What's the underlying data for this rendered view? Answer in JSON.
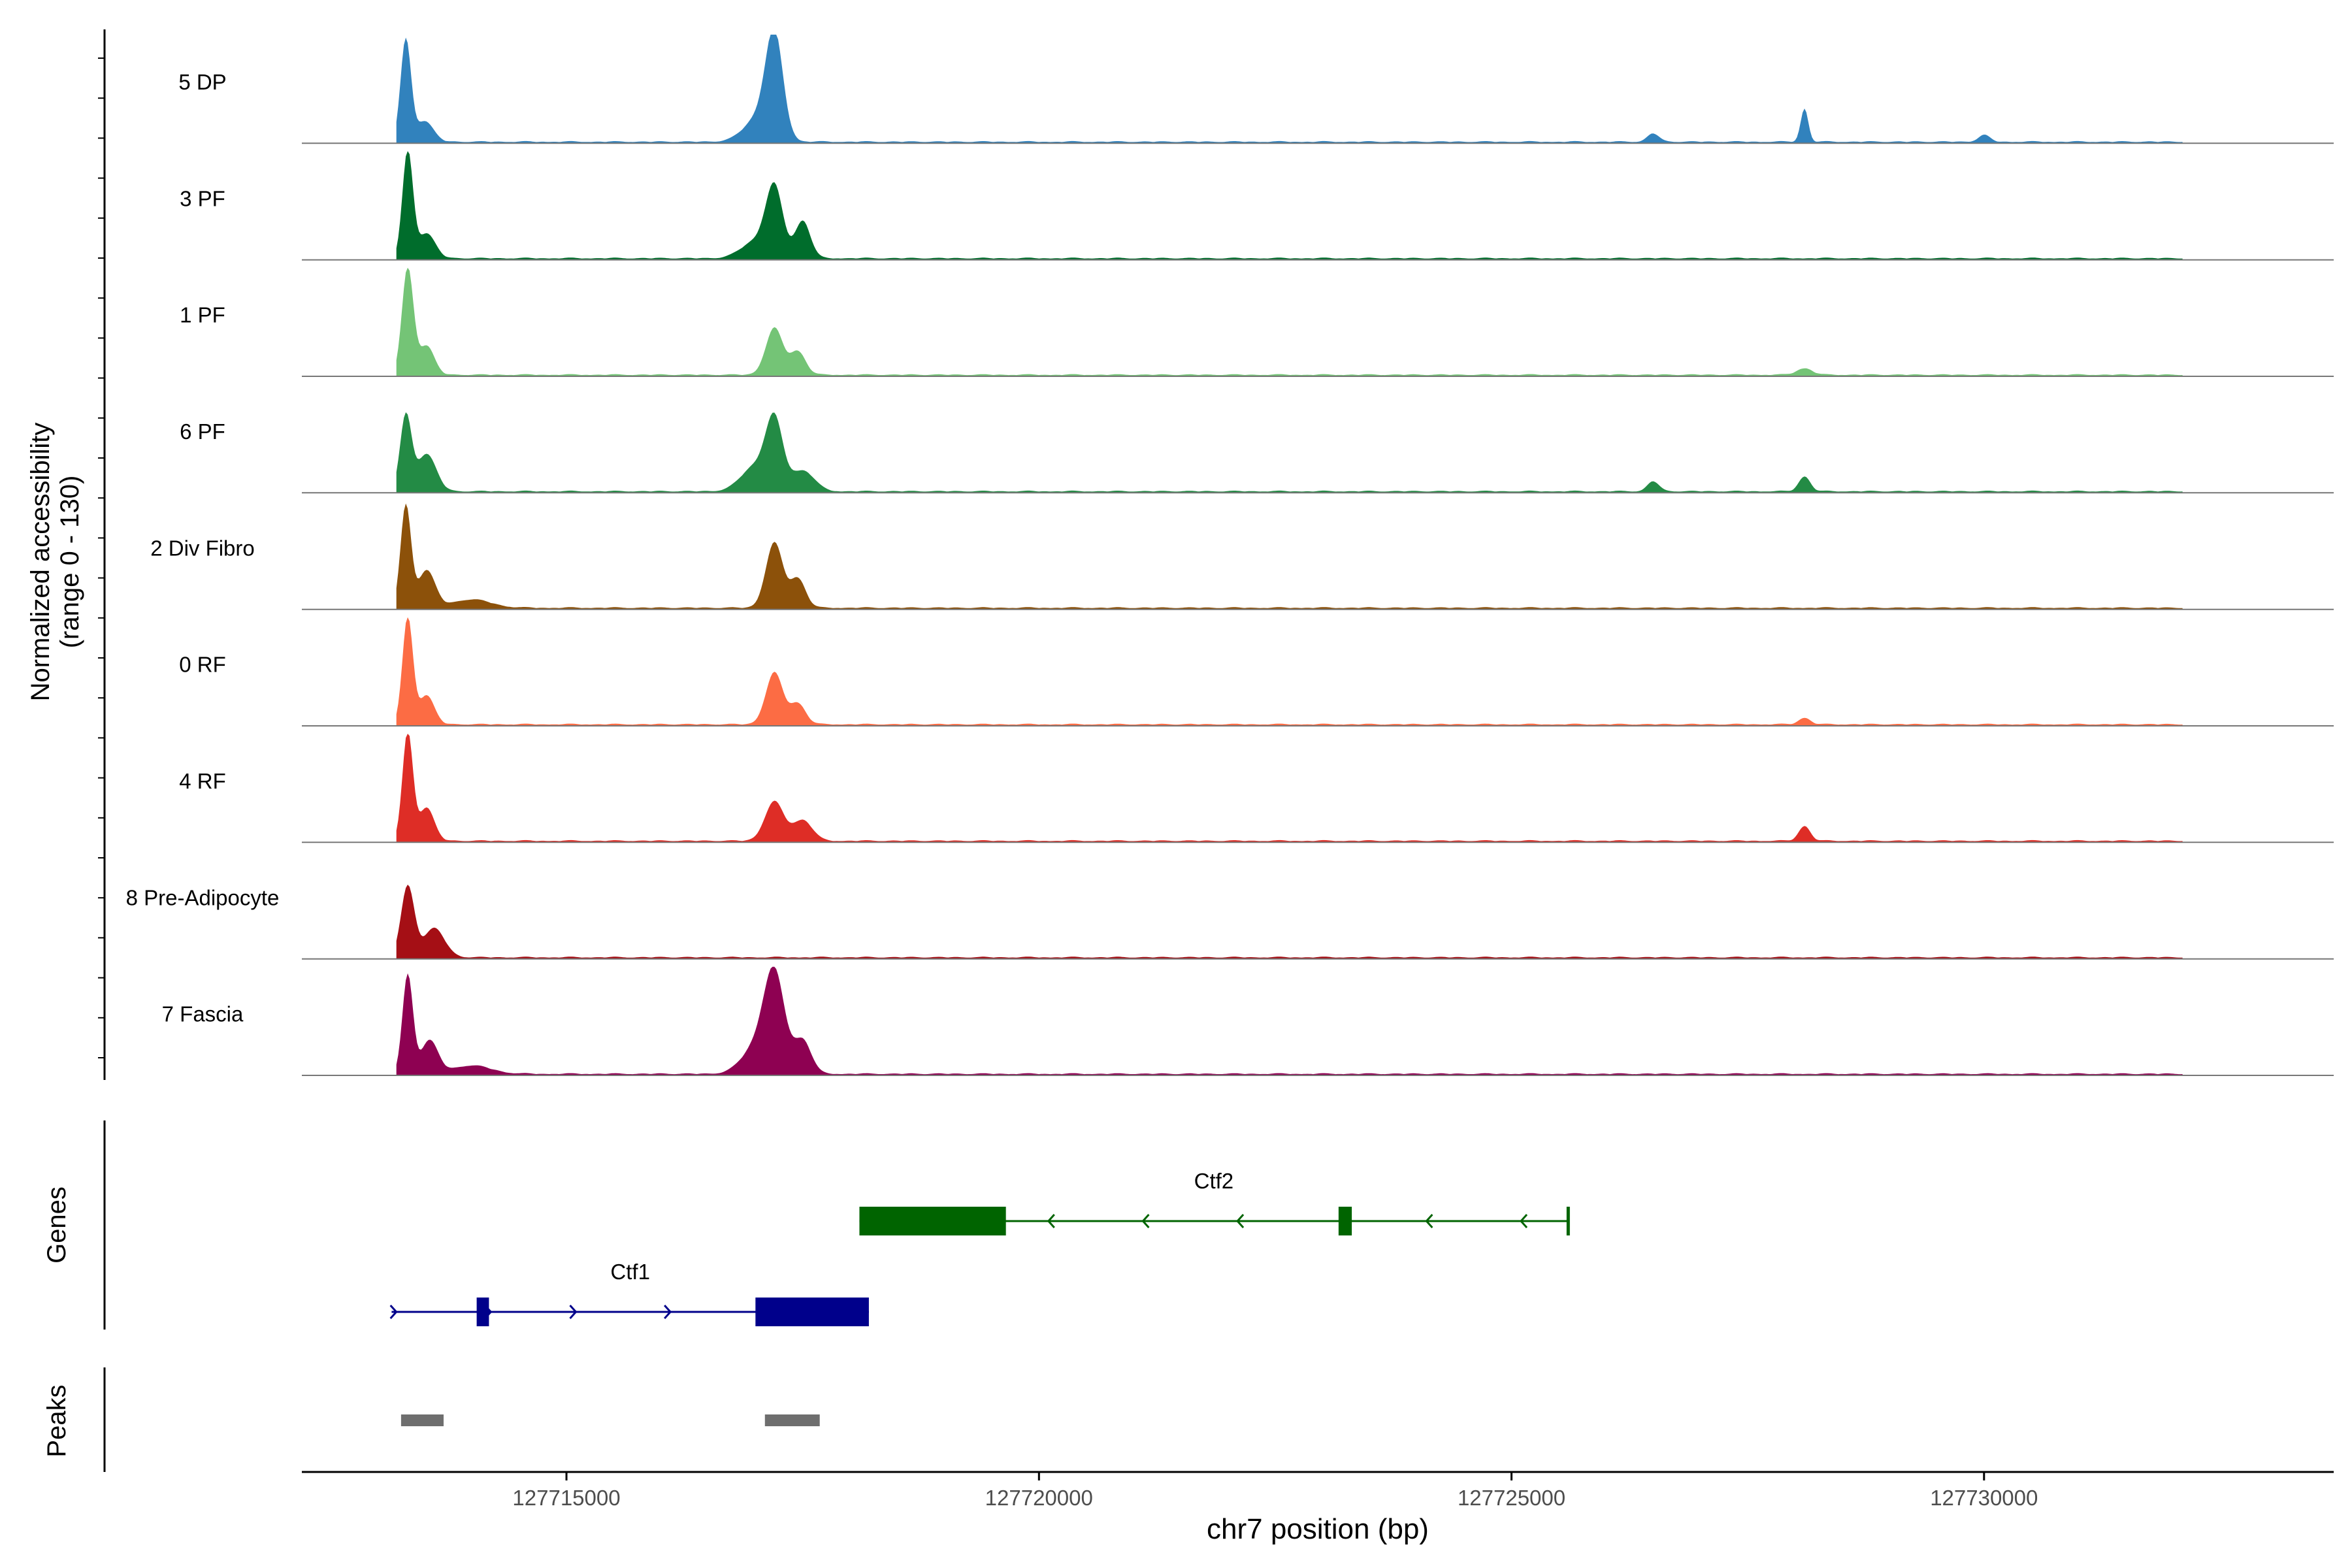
{
  "chart_data": {
    "type": "area",
    "title": "",
    "xlabel": "chr7 position (bp)",
    "ylabel_line1": "Normalized accessibility",
    "ylabel_line2": "(range 0 - 130)",
    "xlim": [
      127712200,
      127733700
    ],
    "ylim": [
      0,
      130
    ],
    "xticks": [
      127715000,
      127720000,
      127725000,
      127730000
    ],
    "xtick_labels": [
      "127715000",
      "127720000",
      "127725000",
      "127730000"
    ],
    "series": [
      {
        "name": "5 DP",
        "color": "#3182bd",
        "peaks": [
          [
            127713300,
            122,
            55
          ],
          [
            127713500,
            25,
            90
          ],
          [
            127717200,
            118,
            90
          ],
          [
            127717050,
            30,
            160
          ],
          [
            127728100,
            40,
            40
          ],
          [
            127726500,
            10,
            60
          ],
          [
            127730000,
            8,
            60
          ]
        ]
      },
      {
        "name": "3 PF",
        "color": "#006d2c",
        "peaks": [
          [
            127713320,
            128,
            55
          ],
          [
            127713520,
            30,
            90
          ],
          [
            127717200,
            82,
            90
          ],
          [
            127717500,
            45,
            80
          ],
          [
            127717000,
            20,
            150
          ]
        ]
      },
      {
        "name": "1 PF",
        "color": "#74c476",
        "peaks": [
          [
            127713320,
            128,
            60
          ],
          [
            127713520,
            35,
            80
          ],
          [
            127717200,
            56,
            90
          ],
          [
            127717450,
            28,
            80
          ],
          [
            127728100,
            8,
            80
          ]
        ]
      },
      {
        "name": "6 PF",
        "color": "#238b45",
        "peaks": [
          [
            127713300,
            90,
            60
          ],
          [
            127713520,
            45,
            100
          ],
          [
            127717200,
            80,
            90
          ],
          [
            127717000,
            30,
            150
          ],
          [
            127717500,
            25,
            120
          ],
          [
            127728100,
            18,
            60
          ],
          [
            127726500,
            12,
            60
          ]
        ]
      },
      {
        "name": "2 Div Fibro",
        "color": "#8c510a",
        "peaks": [
          [
            127713300,
            122,
            55
          ],
          [
            127713520,
            45,
            90
          ],
          [
            127717200,
            78,
            90
          ],
          [
            127717450,
            35,
            80
          ],
          [
            127714000,
            10,
            200
          ]
        ]
      },
      {
        "name": "0 RF",
        "color": "#fc6c44",
        "peaks": [
          [
            127713320,
            128,
            55
          ],
          [
            127713520,
            35,
            80
          ],
          [
            127717200,
            62,
            90
          ],
          [
            127717450,
            25,
            80
          ],
          [
            127728100,
            8,
            60
          ]
        ]
      },
      {
        "name": "4 RF",
        "color": "#de2d26",
        "peaks": [
          [
            127713320,
            130,
            55
          ],
          [
            127713520,
            40,
            80
          ],
          [
            127717200,
            47,
            100
          ],
          [
            127717500,
            25,
            100
          ],
          [
            127728100,
            18,
            60
          ]
        ]
      },
      {
        "name": "8 Pre-Adipocyte",
        "color": "#a50f15",
        "peaks": [
          [
            127713320,
            85,
            70
          ],
          [
            127713600,
            35,
            110
          ]
        ]
      },
      {
        "name": "7 Fascia",
        "color": "#8e0152",
        "peaks": [
          [
            127713320,
            118,
            55
          ],
          [
            127713550,
            40,
            90
          ],
          [
            127717200,
            116,
            110
          ],
          [
            127717000,
            30,
            150
          ],
          [
            127717500,
            40,
            90
          ],
          [
            127714000,
            10,
            200
          ]
        ]
      }
    ],
    "genes_track_label": "Genes",
    "peaks_track_label": "Peaks",
    "genes": [
      {
        "name": "Ctf2",
        "strand": "-",
        "start": 127718100,
        "end": 127725600,
        "exons": [
          [
            127718100,
            127719650
          ],
          [
            127723170,
            127723310
          ]
        ],
        "arrows": [
          127720100,
          127721100,
          127722100,
          127724100,
          127725100
        ],
        "color": "#006400",
        "row": 1
      },
      {
        "name": "Ctf1",
        "strand": "+",
        "start": 127713150,
        "end": 127718200,
        "exons": [
          [
            127714050,
            127714180
          ],
          [
            127717000,
            127718200
          ]
        ],
        "arrows": [
          127713200,
          127714200,
          127715100,
          127716100
        ],
        "color": "#00008b",
        "row": 2
      }
    ],
    "peaks": [
      [
        127713250,
        127713700
      ],
      [
        127717100,
        127717680
      ]
    ]
  }
}
